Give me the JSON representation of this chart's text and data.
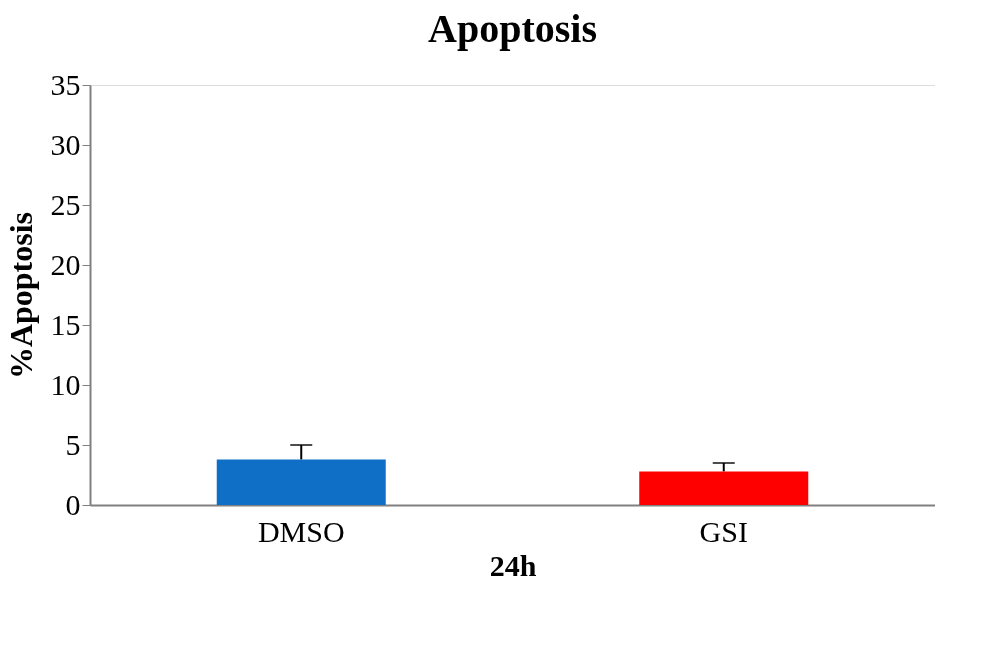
{
  "chart_data": {
    "type": "bar",
    "title": "Apoptosis",
    "xlabel": "24h",
    "ylabel": "%Apoptosis",
    "categories": [
      "DMSO",
      "GSI"
    ],
    "values": [
      3.8,
      2.8
    ],
    "colors": [
      "#0f6fc6",
      "#ff0000"
    ],
    "errors": [
      [
        3.8,
        5.0
      ],
      [
        2.8,
        3.5
      ]
    ],
    "ylim": [
      0,
      35
    ],
    "yticks": [
      0,
      5,
      10,
      15,
      20,
      25,
      30,
      35
    ],
    "grid": false
  }
}
